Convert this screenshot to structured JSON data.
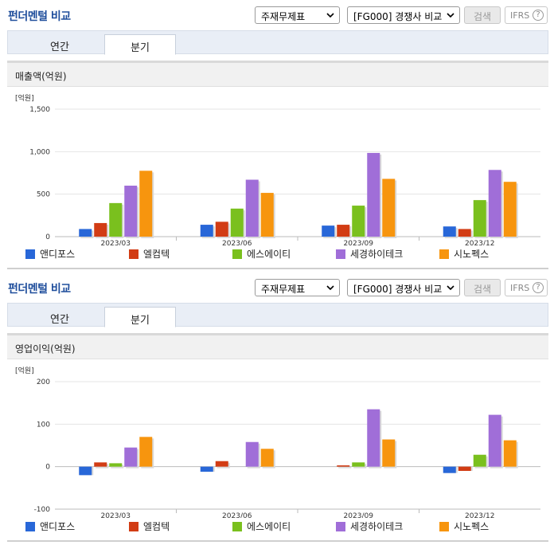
{
  "header": {
    "title": "펀더멘털 비교",
    "select_statement": "주재무제표",
    "select_group": "[FG000] 경쟁사 비교",
    "search_label": "검색",
    "ifrs_label": "IFRS",
    "ifrs_help": "?"
  },
  "tabs": [
    {
      "label": "연간",
      "active": false
    },
    {
      "label": "분기",
      "active": true
    }
  ],
  "legend_colors": [
    "#2867d8",
    "#d23c14",
    "#7ac01e",
    "#a06ed8",
    "#f7950e"
  ],
  "panels": [
    {
      "subtitle": "매출액(억원)"
    },
    {
      "subtitle": "영업이익(억원)"
    }
  ],
  "chart_data": [
    {
      "type": "bar",
      "title": "매출액(억원)",
      "unit_label": "[억원]",
      "categories": [
        "2023/03",
        "2023/06",
        "2023/09",
        "2023/12"
      ],
      "ylim": [
        0,
        1500
      ],
      "yticks": [
        "1,500",
        "1,000",
        "500",
        "0"
      ],
      "ytick_values": [
        1500,
        1000,
        500,
        0
      ],
      "series": [
        {
          "name": "앤디포스",
          "values": [
            90,
            140,
            130,
            120
          ]
        },
        {
          "name": "엘컴텍",
          "values": [
            160,
            175,
            140,
            90
          ]
        },
        {
          "name": "에스에이티",
          "values": [
            395,
            330,
            365,
            430
          ]
        },
        {
          "name": "세경하이테크",
          "values": [
            600,
            670,
            985,
            785
          ]
        },
        {
          "name": "시노펙스",
          "values": [
            775,
            515,
            680,
            645
          ]
        }
      ]
    },
    {
      "type": "bar",
      "title": "영업이익(억원)",
      "unit_label": "[억원]",
      "categories": [
        "2023/03",
        "2023/06",
        "2023/09",
        "2023/12"
      ],
      "ylim": [
        -100,
        200
      ],
      "yticks": [
        "200",
        "100",
        "0",
        "-100"
      ],
      "ytick_values": [
        200,
        100,
        0,
        -100
      ],
      "series": [
        {
          "name": "앤디포스",
          "values": [
            -20,
            -12,
            0,
            -15
          ]
        },
        {
          "name": "엘컴텍",
          "values": [
            10,
            13,
            3,
            -10
          ]
        },
        {
          "name": "에스에이티",
          "values": [
            8,
            0,
            10,
            28
          ]
        },
        {
          "name": "세경하이테크",
          "values": [
            45,
            58,
            135,
            122
          ]
        },
        {
          "name": "시노펙스",
          "values": [
            70,
            42,
            64,
            62
          ]
        }
      ]
    }
  ]
}
